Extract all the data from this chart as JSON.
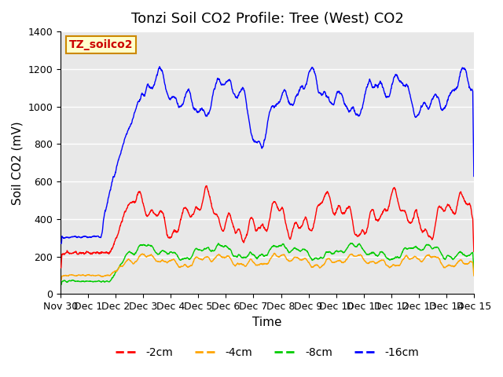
{
  "title": "Tonzi Soil CO2 Profile: Tree (West) CO2",
  "ylabel": "Soil CO2 (mV)",
  "xlabel": "Time",
  "ylim": [
    0,
    1400
  ],
  "background_color": "#ffffff",
  "plot_bg_color": "#e8e8e8",
  "grid_color": "#ffffff",
  "legend_label": "TZ_soilco2",
  "legend_bg": "#ffffcc",
  "legend_border": "#cc8800",
  "series_colors": {
    "-2cm": "#ff0000",
    "-4cm": "#ffa500",
    "-8cm": "#00cc00",
    "-16cm": "#0000ff"
  },
  "xtick_labels": [
    "Nov 30",
    "Dec 1",
    "Dec 2",
    "Dec 3",
    "Dec 4",
    "Dec 5",
    "Dec 6",
    "Dec 7",
    "Dec 8",
    "Dec 9",
    "Dec 10",
    "Dec 11",
    "Dec 12",
    "Dec 13",
    "Dec 14",
    "Dec 15"
  ],
  "xtick_pos": [
    0,
    1,
    2,
    3,
    4,
    5,
    6,
    7,
    8,
    9,
    10,
    11,
    12,
    13,
    14,
    15
  ],
  "ytick_vals": [
    0,
    200,
    400,
    600,
    800,
    1000,
    1200,
    1400
  ],
  "title_fontsize": 13,
  "axis_fontsize": 11,
  "tick_fontsize": 9,
  "legend_fontsize": 10
}
